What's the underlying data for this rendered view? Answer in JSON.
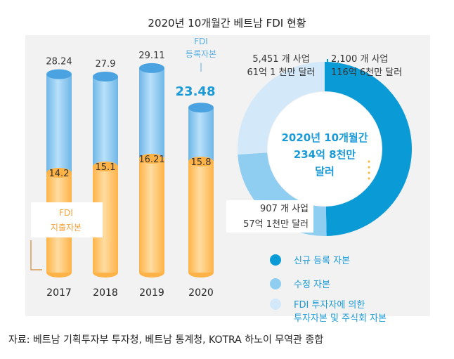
{
  "title": "2020년 10개월간 베트남 FDI 현황",
  "source": "자료: 베트남 기획투자부 투자청, 베트남 통계청, KOTRA 하노이 무역관 종합",
  "chart_data": [
    {
      "type": "bar",
      "categories": [
        "2017",
        "2018",
        "2019",
        "2020"
      ],
      "series": [
        {
          "name": "FDI 등록자본",
          "values": [
            28.24,
            27.9,
            29.11,
            23.48
          ]
        },
        {
          "name": "FDI 지출자본",
          "values": [
            14.2,
            15.1,
            16.21,
            15.8
          ]
        }
      ],
      "value_labels": {
        "registered": [
          "28.24",
          "27.9",
          "29.11",
          "23.48"
        ],
        "disbursed": [
          "14.2",
          "15.1",
          "16.21",
          "15.8"
        ]
      },
      "registered_label": [
        "FDI",
        "등록자본",
        "|"
      ],
      "disbursed_label": [
        "FDI",
        "지출자본"
      ],
      "ylim": [
        0,
        30
      ],
      "colors": {
        "registered": "#8cc8ee",
        "disbursed": "#ffc46b"
      }
    },
    {
      "type": "pie",
      "center_text": [
        "2020년 10개월간",
        "234억 8천만",
        "달러"
      ],
      "labels": [
        "신규 등록 자본",
        "수정 자본",
        "FDI 투자자에 의한 투자자본 및 주식회 자본"
      ],
      "legend": [
        {
          "lines": [
            "신규 등록 자본"
          ],
          "color": "#0a9bd6"
        },
        {
          "lines": [
            "수정 자본"
          ],
          "color": "#8fcdf1"
        },
        {
          "lines": [
            "FDI 투자자에 의한",
            "투자자본 및 주식회 자본"
          ],
          "color": "#d3e8f8"
        }
      ],
      "values": [
        116.6,
        57.1,
        61.1
      ],
      "colors": [
        "#0a9bd6",
        "#8fcdf1",
        "#d3e8f8"
      ],
      "annotations": [
        {
          "line1": "2,100  개 사업",
          "line2": "116억 6천만 달러"
        },
        {
          "line1": "907  개 사업",
          "line2": "57억 1천만 달러"
        },
        {
          "line1": "5,451  개 사업",
          "line2": "61억 1 천만 달러"
        }
      ]
    }
  ]
}
